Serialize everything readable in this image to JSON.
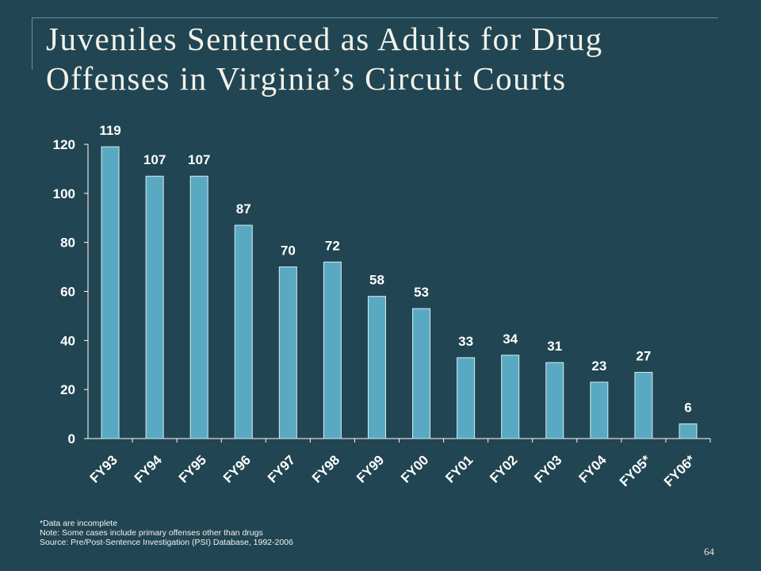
{
  "slide": {
    "title_line1": "Juveniles Sentenced as Adults for Drug",
    "title_line2": "Offenses in Virginia’s Circuit Courts",
    "footnote": "*Data are incomplete",
    "note": "Note: Some cases include primary offenses other than drugs",
    "source": "Source:  Pre/Post-Sentence Investigation (PSI) Database, 1992-2006",
    "page_number": "64"
  },
  "colors": {
    "background": "#214552",
    "bar_fill": "#5aa9c2",
    "bar_stroke": "#d6edf3",
    "text": "#ffffff"
  },
  "chart_data": {
    "type": "bar",
    "categories": [
      "FY93",
      "FY94",
      "FY95",
      "FY96",
      "FY97",
      "FY98",
      "FY99",
      "FY00",
      "FY01",
      "FY02",
      "FY03",
      "FY04",
      "FY05*",
      "FY06*"
    ],
    "values": [
      119,
      107,
      107,
      87,
      70,
      72,
      58,
      53,
      33,
      34,
      31,
      23,
      27,
      6
    ],
    "ylim": [
      0,
      120
    ],
    "yticks": [
      0,
      20,
      40,
      60,
      80,
      100,
      120
    ],
    "data_labels": true,
    "grid": false,
    "legend": "none"
  }
}
